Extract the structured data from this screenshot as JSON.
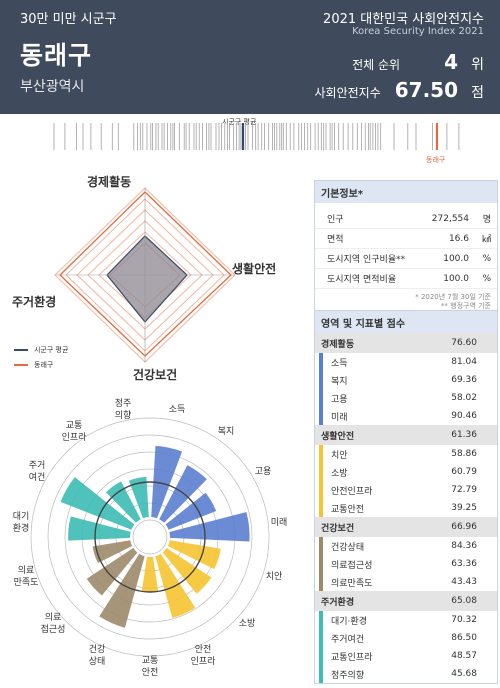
{
  "header": {
    "category": "30만 미만 시군구",
    "region_name": "동래구",
    "city": "부산광역시",
    "index_title": "2021 대한민국 사회안전지수",
    "index_title_en": "Korea Security Index 2021",
    "rank_label": "전체 순위",
    "rank_value": "4",
    "rank_unit": "위",
    "score_label": "사회안전지수",
    "score_value": "67.50",
    "score_unit": "점"
  },
  "strip": {
    "avg_label": "시군구 평균",
    "self_label": "동래구",
    "colors": {
      "avg": "#2e4a7a",
      "self": "#e56a3c",
      "tick": "#a0a0a0"
    }
  },
  "radar": {
    "axes": [
      "경제활동",
      "생활안전",
      "건강보건",
      "주거환경"
    ],
    "legend": [
      {
        "label": "시군구 평균",
        "color": "#3b4a66"
      },
      {
        "label": "동래구",
        "color": "#e56a3c"
      }
    ]
  },
  "basic_info": {
    "title": "기본정보*",
    "rows": [
      {
        "label": "인구",
        "value": "272,554",
        "unit": "명"
      },
      {
        "label": "면적",
        "value": "16.6",
        "unit": "㎢"
      },
      {
        "label": "도시지역 인구비율**",
        "value": "100.0",
        "unit": "%"
      },
      {
        "label": "도시지역 면적비율",
        "value": "100.0",
        "unit": "%"
      }
    ],
    "notes": [
      "* 2020년 7월 30일 기준",
      "** 행정구역 기준"
    ]
  },
  "scores": {
    "title": "영역 및 지표별 점수",
    "groups": [
      {
        "label": "경제활동",
        "value": "76.60",
        "color": "#5b7fd0",
        "items": [
          {
            "label": "소득",
            "value": "81.04"
          },
          {
            "label": "복지",
            "value": "69.36"
          },
          {
            "label": "고용",
            "value": "58.02"
          },
          {
            "label": "미래",
            "value": "90.46"
          }
        ]
      },
      {
        "label": "생활안전",
        "value": "61.36",
        "color": "#f5c431",
        "items": [
          {
            "label": "치안",
            "value": "58.86"
          },
          {
            "label": "소방",
            "value": "60.79"
          },
          {
            "label": "안전인프라",
            "value": "72.79"
          },
          {
            "label": "교통안전",
            "value": "39.25"
          }
        ]
      },
      {
        "label": "건강보건",
        "value": "66.96",
        "color": "#9c8a6a",
        "items": [
          {
            "label": "건강상태",
            "value": "84.36"
          },
          {
            "label": "의료접근성",
            "value": "63.36"
          },
          {
            "label": "의료만족도",
            "value": "43.43"
          }
        ]
      },
      {
        "label": "주거환경",
        "value": "65.08",
        "color": "#3cbdb4",
        "items": [
          {
            "label": "대기·환경",
            "value": "70.32"
          },
          {
            "label": "주거여건",
            "value": "86.50"
          },
          {
            "label": "교통인프라",
            "value": "48.57"
          },
          {
            "label": "정주의향",
            "value": "45.68"
          }
        ]
      }
    ]
  },
  "rose": {
    "labels": [
      "소득",
      "복지",
      "고용",
      "미래",
      "치안",
      "소방",
      "안전\n인프라",
      "교통\n안전",
      "건강\n상태",
      "의료\n접근성",
      "의료\n만족도",
      "대기\n환경",
      "주거\n여건",
      "교통\n인프라",
      "정주\n의향"
    ]
  }
}
